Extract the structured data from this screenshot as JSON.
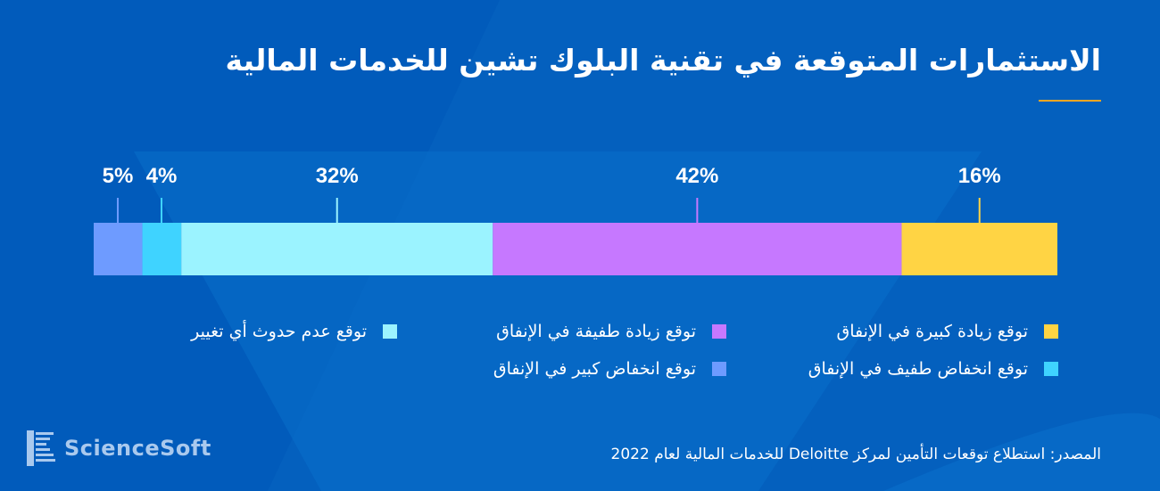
{
  "title": "الاستثمارات المتوقعة في تقنية البلوك تشين للخدمات المالية",
  "chart_data": {
    "type": "bar",
    "orientation": "horizontal-stacked-100",
    "series": [
      {
        "name": "توقع انخفاض كبير في الإنفاق",
        "value": 5,
        "label": "5%",
        "color": "#6e9bff"
      },
      {
        "name": "توقع انخفاض طفيف في الإنفاق",
        "value": 4,
        "label": "4%",
        "color": "#3fd3ff"
      },
      {
        "name": "توقع عدم حدوث أي تغيير",
        "value": 32,
        "label": "32%",
        "color": "#9bf3ff"
      },
      {
        "name": "توقع زيادة طفيفة في الإنفاق",
        "value": 42,
        "label": "42%",
        "color": "#c678ff"
      },
      {
        "name": "توقع زيادة كبيرة في الإنفاق",
        "value": 16,
        "label": "16%",
        "color": "#ffd444"
      }
    ],
    "legend_position": "bottom"
  },
  "source": "المصدر: استطلاع توقعات التأمين لمركز Deloitte للخدمات المالية لعام 2022",
  "logo": {
    "text": "ScienceSoft"
  },
  "colors": {
    "background": "#0460be",
    "accent": "#f5a623"
  }
}
